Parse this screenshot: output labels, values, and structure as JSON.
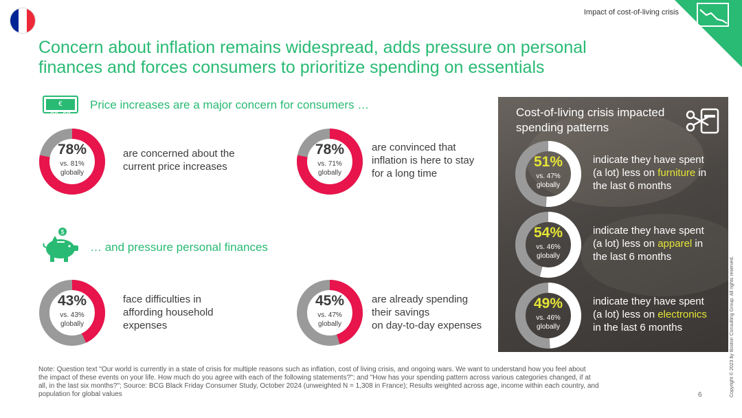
{
  "header": {
    "section_label": "Impact of cost-of-living crisis",
    "title_line1": "Concern about inflation remains widespread, adds pressure on personal",
    "title_line2": "finances and forces consumers to prioritize spending on essentials",
    "flag_colors": [
      "#002395",
      "#ffffff",
      "#ed2939"
    ],
    "corner_color": "#29ba74"
  },
  "colors": {
    "accent_green": "#29ba74",
    "donut_red": "#e8144c",
    "donut_grey": "#9a9a9a",
    "panel_highlight": "#e5e535"
  },
  "section1": {
    "icon": "euro-price-display-icon",
    "icon_text": "€ 88:88",
    "heading": "Price increases are a major concern for consumers …",
    "stats": [
      {
        "pct": "78%",
        "value": 78,
        "vs": "vs. 81%",
        "globally": "globally",
        "text_lines": [
          "are concerned about the",
          "current price increases"
        ]
      },
      {
        "pct": "78%",
        "value": 78,
        "vs": "vs. 71%",
        "globally": "globally",
        "text_lines": [
          "are convinced that",
          "inflation is here to stay",
          "for a long time"
        ]
      }
    ]
  },
  "section2": {
    "icon": "piggy-bank-icon",
    "heading": "… and pressure personal finances",
    "stats": [
      {
        "pct": "43%",
        "value": 43,
        "vs": "vs. 43%",
        "globally": "globally",
        "text_lines": [
          "face difficulties in",
          "affording household",
          "expenses"
        ]
      },
      {
        "pct": "45%",
        "value": 45,
        "vs": "vs. 47%",
        "globally": "globally",
        "text_lines": [
          "are already spending",
          "their savings",
          "on day-to-day expenses"
        ]
      }
    ]
  },
  "panel": {
    "title_line1": "Cost-of-living crisis impacted",
    "title_line2": "spending patterns",
    "icon": "scissors-cutting-card-icon",
    "stats": [
      {
        "pct": "51%",
        "value": 51,
        "vs": "vs. 47%",
        "globally": "globally",
        "line1": "indicate they have spent",
        "line2_pre": "(a lot) less on ",
        "category": "furniture",
        "line2_post": " in",
        "line3": "the last 6 months"
      },
      {
        "pct": "54%",
        "value": 54,
        "vs": "vs. 46%",
        "globally": "globally",
        "line1": "indicate they have spent",
        "line2_pre": "(a lot) less on ",
        "category": "apparel",
        "line2_post": " in",
        "line3": "the last 6 months"
      },
      {
        "pct": "49%",
        "value": 49,
        "vs": "vs. 46%",
        "globally": "globally",
        "line1": "indicate they have spent",
        "line2_pre": "(a lot) less on ",
        "category": "electronics",
        "line2_post": "",
        "line3": "in the last 6 months"
      }
    ]
  },
  "footer": {
    "note_line1": "Note: Question text \"Our world is currently in a state of crisis for multiple reasons such as inflation, cost of living crisis, and ongoing wars. We want to understand how you feel about",
    "note_line2": "the impact of these events on your life. How much do you agree with each of the following statements?\"; and \"How has your spending pattern across various categories changed, if at",
    "note_line3": "all, in the last six months?\"; Source: BCG Black Friday Consumer Study, October 2024 (unweighted N = 1,308 in France); Results weighted across age, income within each country, and",
    "note_line4": "population for global values",
    "page_number": "6",
    "copyright": "Copyright © 2023 by Boston Consulting Group. All rights reserved."
  }
}
